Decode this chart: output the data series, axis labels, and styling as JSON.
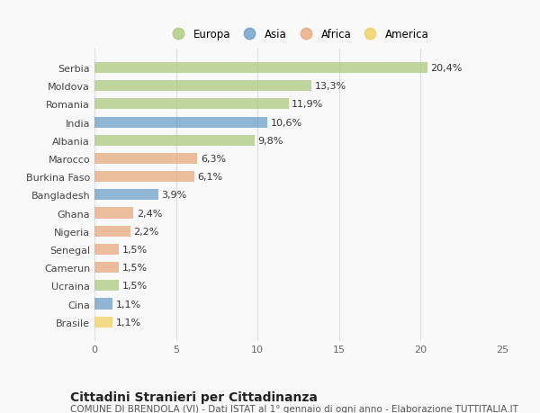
{
  "countries": [
    "Serbia",
    "Moldova",
    "Romania",
    "India",
    "Albania",
    "Marocco",
    "Burkina Faso",
    "Bangladesh",
    "Ghana",
    "Nigeria",
    "Senegal",
    "Camerun",
    "Ucraina",
    "Cina",
    "Brasile"
  ],
  "values": [
    20.4,
    13.3,
    11.9,
    10.6,
    9.8,
    6.3,
    6.1,
    3.9,
    2.4,
    2.2,
    1.5,
    1.5,
    1.5,
    1.1,
    1.1
  ],
  "labels": [
    "20,4%",
    "13,3%",
    "11,9%",
    "10,6%",
    "9,8%",
    "6,3%",
    "6,1%",
    "3,9%",
    "2,4%",
    "2,2%",
    "1,5%",
    "1,5%",
    "1,5%",
    "1,1%",
    "1,1%"
  ],
  "continents": [
    "Europa",
    "Europa",
    "Europa",
    "Asia",
    "Europa",
    "Africa",
    "Africa",
    "Asia",
    "Africa",
    "Africa",
    "Africa",
    "Africa",
    "Europa",
    "Asia",
    "America"
  ],
  "colors": {
    "Europa": "#adc97e",
    "Asia": "#6b9ec8",
    "Africa": "#e8a97e",
    "America": "#f0d060"
  },
  "legend_order": [
    "Europa",
    "Asia",
    "Africa",
    "America"
  ],
  "title": "Cittadini Stranieri per Cittadinanza",
  "subtitle": "COMUNE DI BRENDOLA (VI) - Dati ISTAT al 1° gennaio di ogni anno - Elaborazione TUTTITALIA.IT",
  "xlim": [
    0,
    25
  ],
  "xticks": [
    0,
    5,
    10,
    15,
    20,
    25
  ],
  "bg_color": "#f9f9f9",
  "grid_color": "#dddddd",
  "bar_height": 0.6,
  "label_fontsize": 8,
  "tick_fontsize": 8,
  "title_fontsize": 10,
  "subtitle_fontsize": 7.5
}
